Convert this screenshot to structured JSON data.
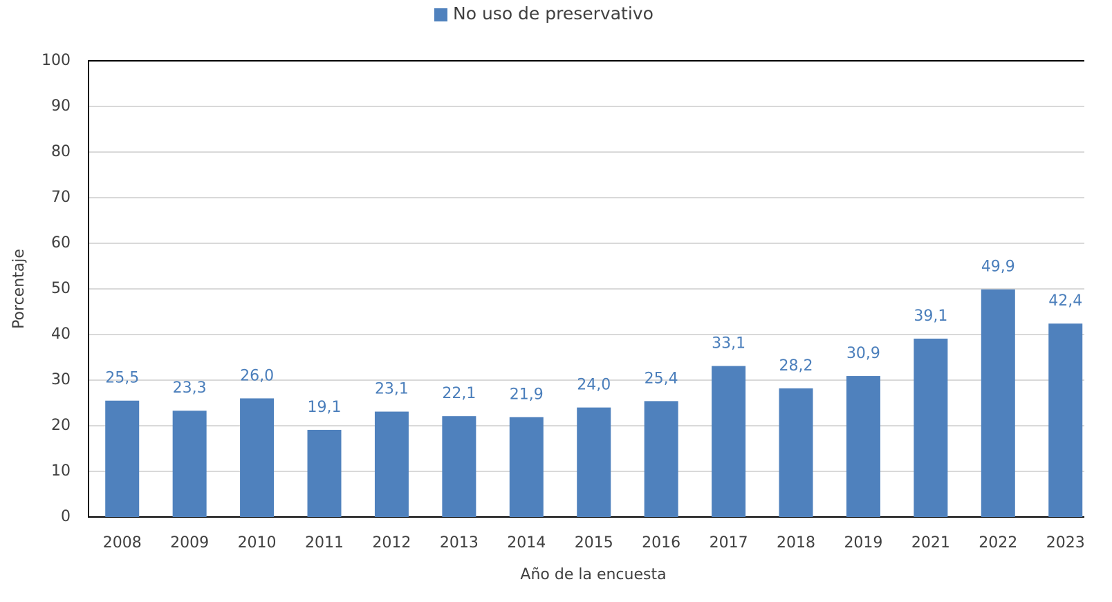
{
  "chart_data": {
    "type": "bar",
    "x_label": "Año de la encuesta",
    "y_label": "Porcentaje",
    "categories": [
      "2008",
      "2009",
      "2010",
      "2011",
      "2012",
      "2013",
      "2014",
      "2015",
      "2016",
      "2017",
      "2018",
      "2019",
      "2021",
      "2022",
      "2023"
    ],
    "series": [
      {
        "name": "No uso de preservativo",
        "color": "#4f81bd",
        "values": [
          25.5,
          23.3,
          26.0,
          19.1,
          23.1,
          22.1,
          21.9,
          24.0,
          25.4,
          33.1,
          28.2,
          30.9,
          39.1,
          49.9,
          42.4
        ],
        "value_labels": [
          "25,5",
          "23,3",
          "26,0",
          "19,1",
          "23,1",
          "22,1",
          "21,9",
          "24,0",
          "25,4",
          "33,1",
          "28,2",
          "30,9",
          "39,1",
          "49,9",
          "42,4"
        ]
      }
    ],
    "ylim": [
      0,
      100
    ],
    "yticks": [
      0,
      10,
      20,
      30,
      40,
      50,
      60,
      70,
      80,
      90,
      100
    ],
    "grid": true,
    "legend": "top",
    "value_label_color": "#4a7ebb"
  }
}
